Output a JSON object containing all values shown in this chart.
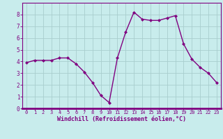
{
  "x": [
    0,
    1,
    2,
    3,
    4,
    5,
    6,
    7,
    8,
    9,
    10,
    11,
    12,
    13,
    14,
    15,
    16,
    17,
    18,
    19,
    20,
    21,
    22,
    23
  ],
  "y": [
    3.9,
    4.1,
    4.1,
    4.1,
    4.3,
    4.3,
    3.8,
    3.1,
    2.2,
    1.1,
    0.5,
    4.3,
    6.5,
    8.2,
    7.6,
    7.5,
    7.5,
    7.7,
    7.9,
    5.5,
    4.2,
    3.5,
    3.0,
    2.2
  ],
  "line_color": "#800080",
  "marker": "D",
  "marker_size": 2,
  "bg_color": "#c8ecec",
  "grid_color": "#a8cece",
  "xlabel": "Windchill (Refroidissement éolien,°C)",
  "xlabel_color": "#800080",
  "tick_color": "#800080",
  "xlim": [
    -0.5,
    23.5
  ],
  "ylim": [
    0,
    9
  ],
  "yticks": [
    0,
    1,
    2,
    3,
    4,
    5,
    6,
    7,
    8
  ],
  "xticks": [
    0,
    1,
    2,
    3,
    4,
    5,
    6,
    7,
    8,
    9,
    10,
    11,
    12,
    13,
    14,
    15,
    16,
    17,
    18,
    19,
    20,
    21,
    22,
    23
  ],
  "linewidth": 1.0,
  "spine_color": "#800080",
  "xlabel_fontsize": 6.0,
  "xtick_fontsize": 5.0,
  "ytick_fontsize": 5.5
}
